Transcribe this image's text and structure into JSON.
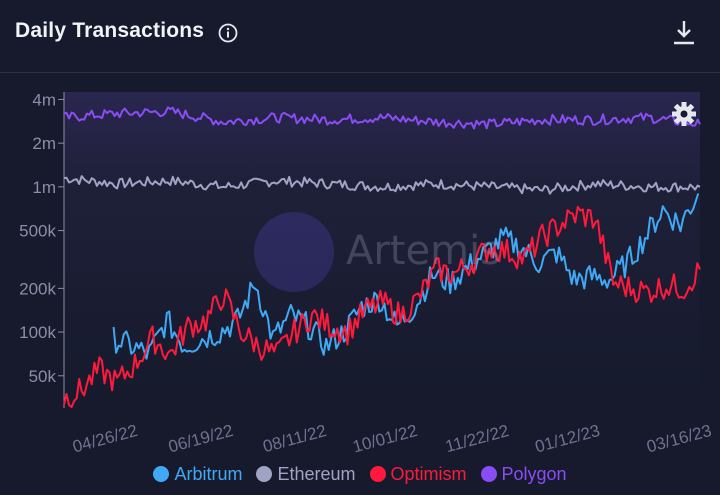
{
  "header": {
    "title": "Daily Transactions",
    "info_icon": "info-icon",
    "download_icon": "download-icon"
  },
  "settings_icon": "gear-icon",
  "watermark": {
    "text": "Artemis"
  },
  "colors": {
    "background": "#161a2c",
    "arbitrum": "#3fa9f5",
    "ethereum": "#a0a3c4",
    "optimism": "#ff1a3c",
    "polygon": "#8a4df5"
  },
  "chart_data": {
    "type": "line",
    "title": "Daily Transactions",
    "y_scale": "log",
    "ylim": [
      30000,
      4500000
    ],
    "yticks": [
      {
        "value": 50000,
        "label": "50k"
      },
      {
        "value": 100000,
        "label": "100k"
      },
      {
        "value": 200000,
        "label": "200k"
      },
      {
        "value": 500000,
        "label": "500k"
      },
      {
        "value": 1000000,
        "label": "1m"
      },
      {
        "value": 2000000,
        "label": "2m"
      },
      {
        "value": 4000000,
        "label": "4m"
      }
    ],
    "xlim": [
      "2022-04-02",
      "2023-03-27"
    ],
    "xticks": [
      "2022-04-26",
      "2022-06-19",
      "2022-08-11",
      "2022-10-01",
      "2022-11-22",
      "2023-01-12",
      "2023-03-16"
    ],
    "xtick_labels": [
      "04/26/22",
      "06/19/22",
      "08/11/22",
      "10/01/22",
      "11/22/22",
      "01/12/23",
      "03/16/23"
    ],
    "grid": false,
    "legend": "bottom",
    "series": [
      {
        "name": "Arbitrum",
        "x": [
          "2022-04-30",
          "2022-05-10",
          "2022-05-20",
          "2022-05-30",
          "2022-06-09",
          "2022-06-19",
          "2022-06-29",
          "2022-07-09",
          "2022-07-19",
          "2022-07-29",
          "2022-08-08",
          "2022-08-18",
          "2022-08-28",
          "2022-09-07",
          "2022-09-17",
          "2022-09-27",
          "2022-10-07",
          "2022-10-17",
          "2022-10-27",
          "2022-11-06",
          "2022-11-16",
          "2022-11-26",
          "2022-12-06",
          "2022-12-16",
          "2022-12-26",
          "2023-01-05",
          "2023-01-15",
          "2023-01-25",
          "2023-02-04",
          "2023-02-14",
          "2023-02-24",
          "2023-03-06",
          "2023-03-16",
          "2023-03-26"
        ],
        "values": [
          90000,
          80000,
          70000,
          120000,
          80000,
          90000,
          100000,
          120000,
          220000,
          90000,
          130000,
          110000,
          80000,
          100000,
          150000,
          170000,
          110000,
          150000,
          250000,
          220000,
          280000,
          350000,
          440000,
          380000,
          300000,
          350000,
          230000,
          240000,
          230000,
          300000,
          450000,
          700000,
          550000,
          900000
        ]
      },
      {
        "name": "Ethereum",
        "x": [
          "2022-04-02",
          "2022-05-02",
          "2022-06-01",
          "2022-07-01",
          "2022-07-31",
          "2022-08-30",
          "2022-09-29",
          "2022-10-29",
          "2022-11-28",
          "2022-12-28",
          "2023-01-27",
          "2023-02-26",
          "2023-03-27"
        ],
        "values": [
          1150000,
          1050000,
          1100000,
          1000000,
          1100000,
          1050000,
          1000000,
          1050000,
          1000000,
          950000,
          1050000,
          1000000,
          1000000
        ]
      },
      {
        "name": "Optimism",
        "x": [
          "2022-04-02",
          "2022-04-12",
          "2022-04-22",
          "2022-05-02",
          "2022-05-12",
          "2022-05-22",
          "2022-06-01",
          "2022-06-11",
          "2022-06-21",
          "2022-07-01",
          "2022-07-11",
          "2022-07-21",
          "2022-07-31",
          "2022-08-10",
          "2022-08-20",
          "2022-08-30",
          "2022-09-09",
          "2022-09-19",
          "2022-09-29",
          "2022-10-09",
          "2022-10-19",
          "2022-10-29",
          "2022-11-08",
          "2022-11-18",
          "2022-11-28",
          "2022-12-08",
          "2022-12-18",
          "2022-12-28",
          "2023-01-07",
          "2023-01-17",
          "2023-01-27",
          "2023-02-06",
          "2023-02-16",
          "2023-02-26",
          "2023-03-08",
          "2023-03-18",
          "2023-03-27"
        ],
        "values": [
          35000,
          40000,
          55000,
          45000,
          60000,
          90000,
          70000,
          110000,
          120000,
          180000,
          100000,
          80000,
          70000,
          100000,
          130000,
          110000,
          100000,
          140000,
          160000,
          130000,
          170000,
          270000,
          250000,
          300000,
          380000,
          360000,
          320000,
          450000,
          550000,
          650000,
          600000,
          220000,
          200000,
          190000,
          210000,
          200000,
          270000
        ]
      },
      {
        "name": "Polygon",
        "x": [
          "2022-04-02",
          "2022-05-02",
          "2022-06-01",
          "2022-07-01",
          "2022-07-31",
          "2022-08-30",
          "2022-09-29",
          "2022-10-29",
          "2022-11-28",
          "2022-12-28",
          "2023-01-27",
          "2023-02-26",
          "2023-03-27"
        ],
        "values": [
          3000000,
          3200000,
          3300000,
          2800000,
          3000000,
          2900000,
          3000000,
          2800000,
          2700000,
          2900000,
          2900000,
          3000000,
          2700000
        ]
      }
    ]
  }
}
